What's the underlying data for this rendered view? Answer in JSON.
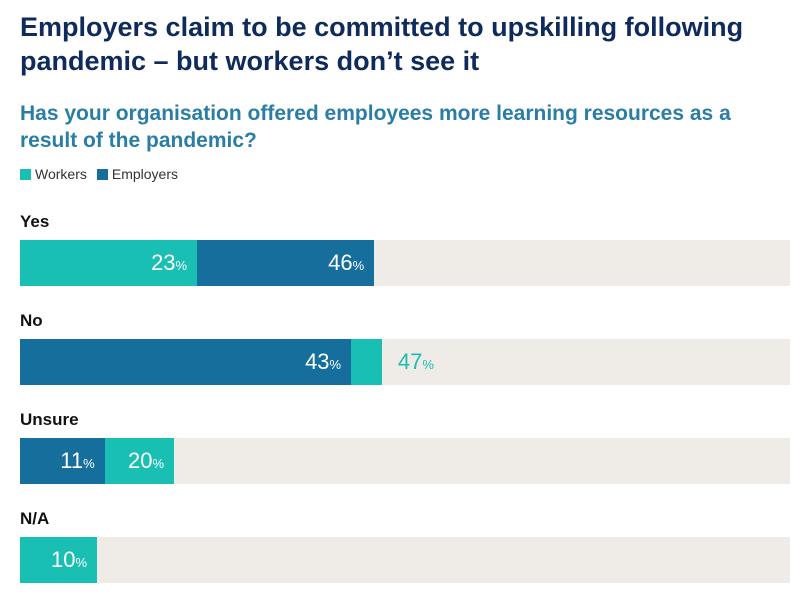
{
  "title": "Employers claim to be committed to upskilling following pandemic – but workers don’t see it",
  "subtitle": "Has your organisation offered employees more learning resources as a result of the pandemic?",
  "colors": {
    "workers": "#1abfb4",
    "employers": "#166e9c",
    "track": "#efebe6",
    "text_on_bar": "#ffffff"
  },
  "legend": [
    {
      "name": "Workers",
      "key": "workers"
    },
    {
      "name": "Employers",
      "key": "employers"
    }
  ],
  "chart_data": {
    "type": "bar",
    "orientation": "horizontal",
    "stacked": true,
    "categories": [
      "Yes",
      "No",
      "Unsure",
      "N/A"
    ],
    "unit": "%",
    "xlim": [
      0,
      100
    ],
    "series": [
      {
        "name": "Workers",
        "values": [
          23,
          47,
          20,
          10
        ]
      },
      {
        "name": "Employers",
        "values": [
          46,
          43,
          11,
          null
        ]
      }
    ],
    "rows": [
      {
        "category": "Yes",
        "segments": [
          {
            "series": "Workers",
            "value": 23,
            "from": 0,
            "to": 23,
            "label": "23",
            "label_outside": false
          },
          {
            "series": "Employers",
            "value": 46,
            "from": 23,
            "to": 46,
            "label": "46",
            "label_outside": false
          }
        ]
      },
      {
        "category": "No",
        "segments": [
          {
            "series": "Employers",
            "value": 43,
            "from": 0,
            "to": 43,
            "label": "43",
            "label_outside": false
          },
          {
            "series": "Workers",
            "value": 47,
            "from": 43,
            "to": 47,
            "label": "47",
            "label_outside": true
          }
        ]
      },
      {
        "category": "Unsure",
        "segments": [
          {
            "series": "Employers",
            "value": 11,
            "from": 0,
            "to": 11,
            "label": "11",
            "label_outside": false
          },
          {
            "series": "Workers",
            "value": 20,
            "from": 11,
            "to": 20,
            "label": "20",
            "label_outside": false
          }
        ]
      },
      {
        "category": "N/A",
        "segments": [
          {
            "series": "Workers",
            "value": 10,
            "from": 0,
            "to": 10,
            "label": "10",
            "label_outside": false
          }
        ]
      }
    ]
  }
}
